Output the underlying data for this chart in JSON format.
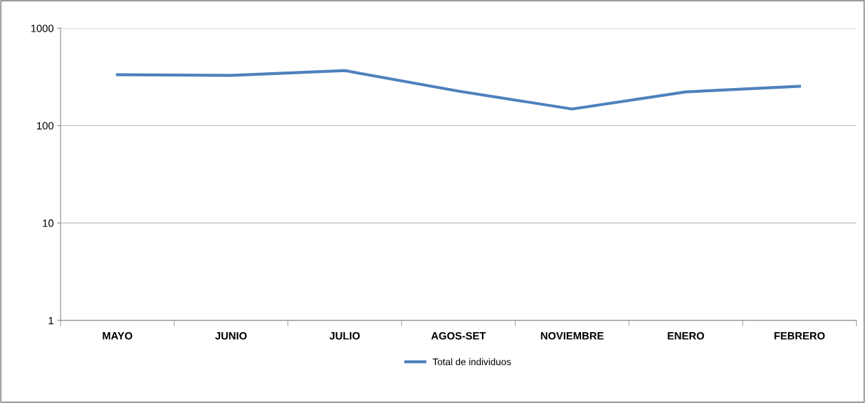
{
  "chart_data": {
    "type": "line",
    "categories": [
      "MAYO",
      "JUNIO",
      "JULIO",
      "AGOS-SET",
      "NOVIEMBRE",
      "ENERO",
      "FEBRERO"
    ],
    "series": [
      {
        "name": "Total de individuos",
        "color": "#4f81bd",
        "values": [
          333,
          328,
          367,
          226,
          148,
          222,
          253
        ]
      }
    ],
    "log": "y",
    "ylim": [
      1,
      1000
    ],
    "yticks": [
      1,
      10,
      100,
      1000
    ],
    "grid": "y",
    "legend": "bottom",
    "marker": "none",
    "line_style": "solid"
  }
}
